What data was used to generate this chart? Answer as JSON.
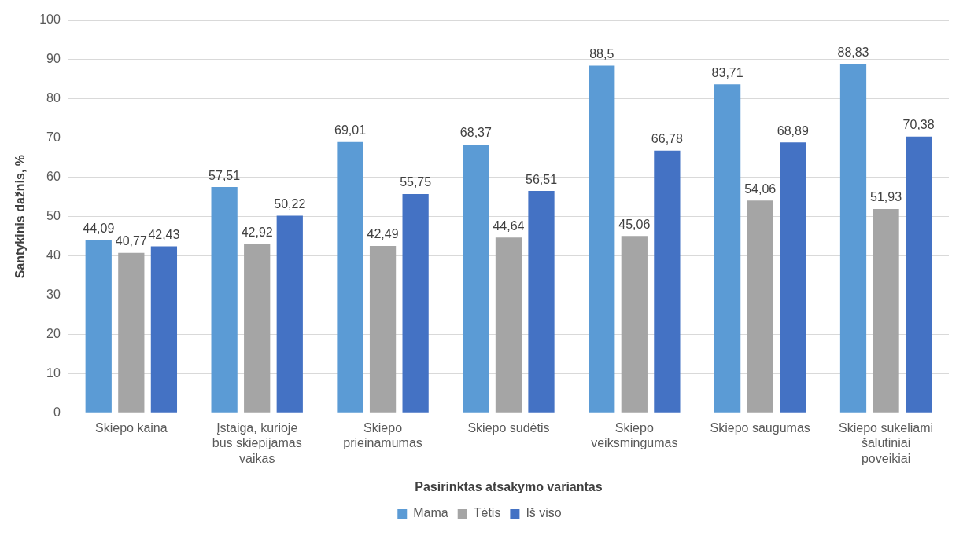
{
  "chart_data": {
    "type": "bar",
    "xlabel": "Pasirinktas atsakymo variantas",
    "ylabel": "Santykinis dažnis, %",
    "categories": [
      "Skiepo kaina",
      "Įstaiga, kurioje bus skiepijamas vaikas",
      "Skiepo prieinamumas",
      "Skiepo sudėtis",
      "Skiepo veiksmingumas",
      "Skiepo saugumas",
      "Skiepo sukeliami šalutiniai poveikiai"
    ],
    "series": [
      {
        "name": "Mama",
        "color": "#5b9bd5",
        "values": [
          44.09,
          57.51,
          69.01,
          68.37,
          88.5,
          83.71,
          88.83
        ],
        "value_labels": [
          "44,09",
          "57,51",
          "69,01",
          "68,37",
          "88,5",
          "83,71",
          "88,83"
        ]
      },
      {
        "name": "Tėtis",
        "color": "#a5a5a5",
        "values": [
          40.77,
          42.92,
          42.49,
          44.64,
          45.06,
          54.06,
          51.93
        ],
        "value_labels": [
          "40,77",
          "42,92",
          "42,49",
          "44,64",
          "45,06",
          "54,06",
          "51,93"
        ]
      },
      {
        "name": "Iš viso",
        "color": "#4472c4",
        "values": [
          42.43,
          50.22,
          55.75,
          56.51,
          66.78,
          68.89,
          70.38
        ],
        "value_labels": [
          "42,43",
          "50,22",
          "55,75",
          "56,51",
          "66,78",
          "68,89",
          "70,38"
        ]
      }
    ],
    "ylim": [
      0,
      100
    ],
    "yticks": [
      0,
      10,
      20,
      30,
      40,
      50,
      60,
      70,
      80,
      90,
      100
    ],
    "grid": "y",
    "legend": "bottom"
  }
}
